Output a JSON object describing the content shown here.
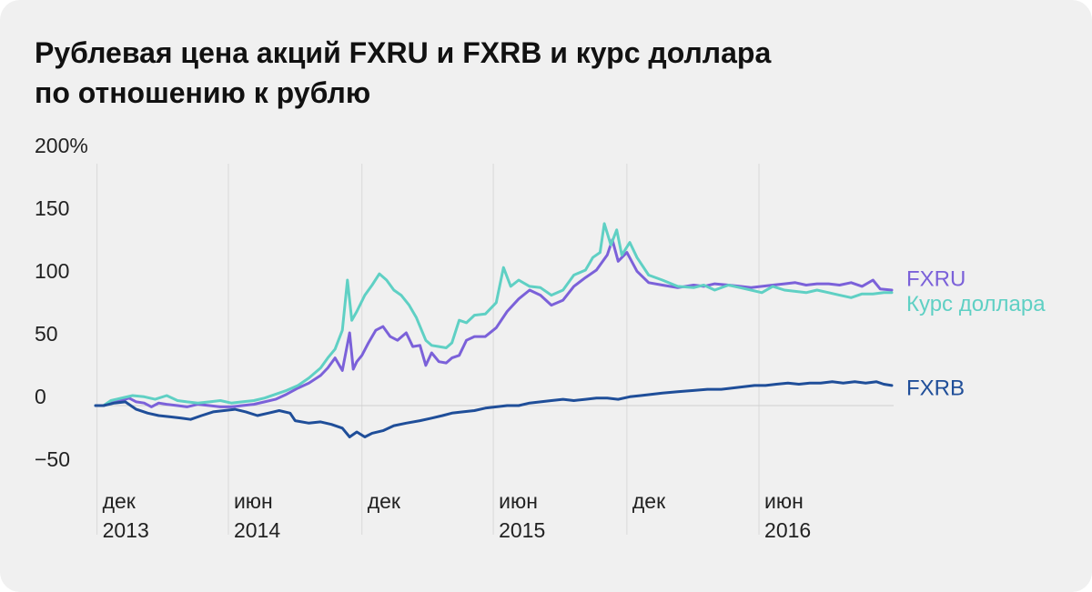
{
  "title_line1": "Рублевая цена акций FXRU и FXRB и курс доллара",
  "title_line2": "по отношению к рублю",
  "chart_data": {
    "type": "line",
    "title": "Рублевая цена акций FXRU и FXRB и курс доллара по отношению к рублю",
    "ylim": [
      -50,
      200
    ],
    "y_ticks": [
      {
        "value": 200,
        "label": "200%"
      },
      {
        "value": 150,
        "label": "150"
      },
      {
        "value": 100,
        "label": "100"
      },
      {
        "value": 50,
        "label": "50"
      },
      {
        "value": 0,
        "label": "0"
      },
      {
        "value": -50,
        "label": "−50"
      }
    ],
    "x_range": [
      "2013-10-30",
      "2016-10-31"
    ],
    "x_ticks": [
      {
        "date": "2013-11-01",
        "line1": "дек",
        "line2": "2013"
      },
      {
        "date": "2014-05-01",
        "line1": "июн",
        "line2": "2014"
      },
      {
        "date": "2014-11-01",
        "line1": "дек",
        "line2": ""
      },
      {
        "date": "2015-05-01",
        "line1": "июн",
        "line2": "2015"
      },
      {
        "date": "2015-11-01",
        "line1": "дек",
        "line2": ""
      },
      {
        "date": "2016-05-01",
        "line1": "июн",
        "line2": "2016"
      }
    ],
    "grid": "vertical lines at x ticks, zero baseline",
    "legend": "right, labels at line ends",
    "colors": {
      "fxru": "#7b61d9",
      "usd": "#5fd0c4",
      "fxrb": "#1f4e99"
    },
    "series": [
      {
        "name": "FXRU",
        "color": "#7b61d9",
        "points": [
          [
            "2013-10-30",
            0
          ],
          [
            "2013-11-10",
            0
          ],
          [
            "2013-11-20",
            3
          ],
          [
            "2013-12-05",
            4
          ],
          [
            "2013-12-15",
            6
          ],
          [
            "2013-12-25",
            3
          ],
          [
            "2014-01-05",
            2
          ],
          [
            "2014-01-15",
            -1
          ],
          [
            "2014-01-25",
            2
          ],
          [
            "2014-02-05",
            1
          ],
          [
            "2014-02-20",
            0
          ],
          [
            "2014-03-05",
            -1
          ],
          [
            "2014-03-20",
            1
          ],
          [
            "2014-04-05",
            0
          ],
          [
            "2014-04-20",
            -1
          ],
          [
            "2014-05-05",
            -1
          ],
          [
            "2014-05-20",
            0
          ],
          [
            "2014-06-05",
            1
          ],
          [
            "2014-06-20",
            3
          ],
          [
            "2014-07-05",
            5
          ],
          [
            "2014-07-20",
            9
          ],
          [
            "2014-08-05",
            14
          ],
          [
            "2014-08-20",
            18
          ],
          [
            "2014-09-05",
            24
          ],
          [
            "2014-09-15",
            30
          ],
          [
            "2014-09-25",
            38
          ],
          [
            "2014-10-05",
            28
          ],
          [
            "2014-10-15",
            58
          ],
          [
            "2014-10-20",
            29
          ],
          [
            "2014-10-25",
            35
          ],
          [
            "2014-11-01",
            40
          ],
          [
            "2014-11-10",
            50
          ],
          [
            "2014-11-20",
            60
          ],
          [
            "2014-11-30",
            63
          ],
          [
            "2014-12-10",
            55
          ],
          [
            "2014-12-20",
            52
          ],
          [
            "2015-01-01",
            58
          ],
          [
            "2015-01-10",
            47
          ],
          [
            "2015-01-20",
            48
          ],
          [
            "2015-01-28",
            32
          ],
          [
            "2015-02-05",
            42
          ],
          [
            "2015-02-15",
            35
          ],
          [
            "2015-02-25",
            34
          ],
          [
            "2015-03-05",
            38
          ],
          [
            "2015-03-15",
            40
          ],
          [
            "2015-03-25",
            52
          ],
          [
            "2015-04-05",
            55
          ],
          [
            "2015-04-20",
            55
          ],
          [
            "2015-05-05",
            62
          ],
          [
            "2015-05-20",
            75
          ],
          [
            "2015-06-05",
            85
          ],
          [
            "2015-06-20",
            92
          ],
          [
            "2015-07-05",
            88
          ],
          [
            "2015-07-20",
            80
          ],
          [
            "2015-08-05",
            84
          ],
          [
            "2015-08-20",
            95
          ],
          [
            "2015-09-05",
            102
          ],
          [
            "2015-09-20",
            108
          ],
          [
            "2015-10-05",
            120
          ],
          [
            "2015-10-12",
            132
          ],
          [
            "2015-10-20",
            115
          ],
          [
            "2015-11-01",
            122
          ],
          [
            "2015-11-15",
            107
          ],
          [
            "2015-12-01",
            98
          ],
          [
            "2015-12-20",
            96
          ],
          [
            "2016-01-10",
            94
          ],
          [
            "2016-02-01",
            96
          ],
          [
            "2016-02-15",
            95
          ],
          [
            "2016-03-01",
            97
          ],
          [
            "2016-03-20",
            96
          ],
          [
            "2016-04-05",
            95
          ],
          [
            "2016-04-20",
            94
          ],
          [
            "2016-05-05",
            95
          ],
          [
            "2016-05-20",
            96
          ],
          [
            "2016-06-05",
            97
          ],
          [
            "2016-06-20",
            98
          ],
          [
            "2016-07-05",
            96
          ],
          [
            "2016-07-20",
            97
          ],
          [
            "2016-08-05",
            97
          ],
          [
            "2016-08-20",
            96
          ],
          [
            "2016-09-05",
            98
          ],
          [
            "2016-09-20",
            95
          ],
          [
            "2016-10-05",
            100
          ],
          [
            "2016-10-15",
            93
          ],
          [
            "2016-10-31",
            92
          ]
        ]
      },
      {
        "name": "Курс доллара",
        "color": "#5fd0c4",
        "points": [
          [
            "2013-10-30",
            0
          ],
          [
            "2013-11-10",
            0
          ],
          [
            "2013-11-20",
            4
          ],
          [
            "2013-12-05",
            6
          ],
          [
            "2013-12-20",
            8
          ],
          [
            "2014-01-05",
            7
          ],
          [
            "2014-01-20",
            5
          ],
          [
            "2014-02-05",
            8
          ],
          [
            "2014-02-20",
            4
          ],
          [
            "2014-03-05",
            3
          ],
          [
            "2014-03-20",
            2
          ],
          [
            "2014-04-05",
            3
          ],
          [
            "2014-04-20",
            4
          ],
          [
            "2014-05-05",
            2
          ],
          [
            "2014-05-20",
            3
          ],
          [
            "2014-06-05",
            4
          ],
          [
            "2014-06-20",
            6
          ],
          [
            "2014-07-05",
            9
          ],
          [
            "2014-07-20",
            12
          ],
          [
            "2014-08-05",
            16
          ],
          [
            "2014-08-20",
            22
          ],
          [
            "2014-09-05",
            30
          ],
          [
            "2014-09-15",
            38
          ],
          [
            "2014-09-25",
            45
          ],
          [
            "2014-10-05",
            60
          ],
          [
            "2014-10-12",
            100
          ],
          [
            "2014-10-18",
            68
          ],
          [
            "2014-10-25",
            75
          ],
          [
            "2014-11-05",
            88
          ],
          [
            "2014-11-15",
            96
          ],
          [
            "2014-11-25",
            105
          ],
          [
            "2014-12-05",
            100
          ],
          [
            "2014-12-15",
            92
          ],
          [
            "2014-12-25",
            88
          ],
          [
            "2015-01-05",
            80
          ],
          [
            "2015-01-15",
            70
          ],
          [
            "2015-01-28",
            52
          ],
          [
            "2015-02-05",
            48
          ],
          [
            "2015-02-15",
            47
          ],
          [
            "2015-02-25",
            46
          ],
          [
            "2015-03-05",
            50
          ],
          [
            "2015-03-15",
            68
          ],
          [
            "2015-03-25",
            66
          ],
          [
            "2015-04-05",
            72
          ],
          [
            "2015-04-20",
            73
          ],
          [
            "2015-05-05",
            82
          ],
          [
            "2015-05-15",
            110
          ],
          [
            "2015-05-25",
            95
          ],
          [
            "2015-06-05",
            100
          ],
          [
            "2015-06-20",
            95
          ],
          [
            "2015-07-05",
            94
          ],
          [
            "2015-07-20",
            88
          ],
          [
            "2015-08-05",
            92
          ],
          [
            "2015-08-20",
            104
          ],
          [
            "2015-09-05",
            108
          ],
          [
            "2015-09-15",
            118
          ],
          [
            "2015-09-25",
            122
          ],
          [
            "2015-10-01",
            145
          ],
          [
            "2015-10-10",
            128
          ],
          [
            "2015-10-18",
            140
          ],
          [
            "2015-10-25",
            120
          ],
          [
            "2015-11-05",
            130
          ],
          [
            "2015-11-15",
            118
          ],
          [
            "2015-12-01",
            104
          ],
          [
            "2015-12-20",
            100
          ],
          [
            "2016-01-10",
            95
          ],
          [
            "2016-02-01",
            94
          ],
          [
            "2016-02-15",
            96
          ],
          [
            "2016-03-01",
            92
          ],
          [
            "2016-03-20",
            96
          ],
          [
            "2016-04-05",
            94
          ],
          [
            "2016-04-20",
            92
          ],
          [
            "2016-05-05",
            90
          ],
          [
            "2016-05-20",
            95
          ],
          [
            "2016-06-05",
            92
          ],
          [
            "2016-06-20",
            91
          ],
          [
            "2016-07-05",
            90
          ],
          [
            "2016-07-20",
            92
          ],
          [
            "2016-08-05",
            90
          ],
          [
            "2016-08-20",
            88
          ],
          [
            "2016-09-05",
            86
          ],
          [
            "2016-09-20",
            89
          ],
          [
            "2016-10-05",
            89
          ],
          [
            "2016-10-20",
            90
          ],
          [
            "2016-10-31",
            90
          ]
        ]
      },
      {
        "name": "FXRB",
        "color": "#1f4e99",
        "points": [
          [
            "2013-10-30",
            0
          ],
          [
            "2013-11-10",
            0
          ],
          [
            "2013-11-25",
            2
          ],
          [
            "2013-12-10",
            3
          ],
          [
            "2013-12-25",
            -3
          ],
          [
            "2014-01-10",
            -6
          ],
          [
            "2014-01-25",
            -8
          ],
          [
            "2014-02-10",
            -9
          ],
          [
            "2014-02-25",
            -10
          ],
          [
            "2014-03-10",
            -11
          ],
          [
            "2014-03-25",
            -8
          ],
          [
            "2014-04-10",
            -5
          ],
          [
            "2014-04-25",
            -4
          ],
          [
            "2014-05-10",
            -3
          ],
          [
            "2014-05-25",
            -5
          ],
          [
            "2014-06-10",
            -8
          ],
          [
            "2014-06-25",
            -6
          ],
          [
            "2014-07-10",
            -4
          ],
          [
            "2014-07-25",
            -6
          ],
          [
            "2014-08-01",
            -12
          ],
          [
            "2014-08-20",
            -14
          ],
          [
            "2014-09-05",
            -13
          ],
          [
            "2014-09-20",
            -15
          ],
          [
            "2014-10-05",
            -18
          ],
          [
            "2014-10-15",
            -25
          ],
          [
            "2014-10-25",
            -21
          ],
          [
            "2014-11-05",
            -25
          ],
          [
            "2014-11-15",
            -22
          ],
          [
            "2014-11-30",
            -20
          ],
          [
            "2014-12-15",
            -16
          ],
          [
            "2015-01-01",
            -14
          ],
          [
            "2015-01-20",
            -12
          ],
          [
            "2015-02-05",
            -10
          ],
          [
            "2015-02-20",
            -8
          ],
          [
            "2015-03-05",
            -6
          ],
          [
            "2015-03-20",
            -5
          ],
          [
            "2015-04-05",
            -4
          ],
          [
            "2015-04-20",
            -2
          ],
          [
            "2015-05-05",
            -1
          ],
          [
            "2015-05-20",
            0
          ],
          [
            "2015-06-05",
            0
          ],
          [
            "2015-06-20",
            2
          ],
          [
            "2015-07-05",
            3
          ],
          [
            "2015-07-20",
            4
          ],
          [
            "2015-08-05",
            5
          ],
          [
            "2015-08-20",
            4
          ],
          [
            "2015-09-05",
            5
          ],
          [
            "2015-09-20",
            6
          ],
          [
            "2015-10-05",
            6
          ],
          [
            "2015-10-20",
            5
          ],
          [
            "2015-11-05",
            7
          ],
          [
            "2015-11-20",
            8
          ],
          [
            "2015-12-05",
            9
          ],
          [
            "2015-12-20",
            10
          ],
          [
            "2016-01-10",
            11
          ],
          [
            "2016-02-01",
            12
          ],
          [
            "2016-02-20",
            13
          ],
          [
            "2016-03-10",
            13
          ],
          [
            "2016-03-25",
            14
          ],
          [
            "2016-04-10",
            15
          ],
          [
            "2016-04-25",
            16
          ],
          [
            "2016-05-10",
            16
          ],
          [
            "2016-05-25",
            17
          ],
          [
            "2016-06-10",
            18
          ],
          [
            "2016-06-25",
            17
          ],
          [
            "2016-07-10",
            18
          ],
          [
            "2016-07-25",
            18
          ],
          [
            "2016-08-10",
            19
          ],
          [
            "2016-08-25",
            18
          ],
          [
            "2016-09-10",
            19
          ],
          [
            "2016-09-25",
            18
          ],
          [
            "2016-10-10",
            19
          ],
          [
            "2016-10-20",
            17
          ],
          [
            "2016-10-31",
            16
          ]
        ]
      }
    ]
  },
  "end_labels": [
    {
      "text": "FXRU",
      "color": "#7b61d9",
      "y_value": 101
    },
    {
      "text": "Курс доллара",
      "color": "#5fd0c4",
      "y_value": 81
    },
    {
      "text": "FXRB",
      "color": "#1f4e99",
      "y_value": 14
    }
  ]
}
